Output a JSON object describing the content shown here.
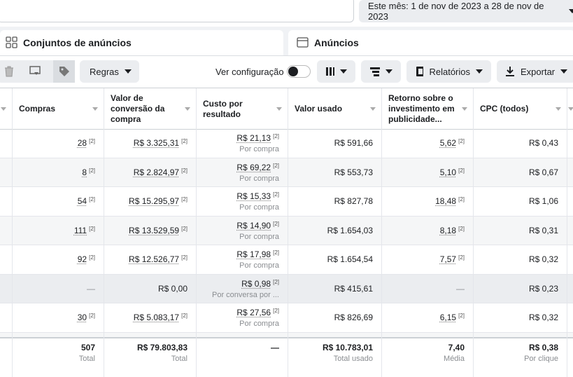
{
  "date_range": "Este mês: 1 de nov de 2023 a 28 de nov de 2023",
  "tabs": [
    "Conjuntos de anúncios",
    "Anúncios"
  ],
  "toolbar": {
    "rules": "Regras",
    "view_setting": "Ver configuração",
    "reports": "Relatórios",
    "export": "Exportar"
  },
  "table": {
    "columns": [
      "Compras",
      "Valor de conversão da compra",
      "Custo por resultado",
      "Valor usado",
      "Retorno sobre o investimento em publicidade...",
      "CPC (todos)"
    ],
    "rows": [
      [
        {
          "text": "28",
          "note": "[2]"
        },
        {
          "text": "R$ 3.325,31",
          "note": "[2]"
        },
        {
          "text": "R$ 21,13",
          "note": "[2]",
          "sub": "Por compra"
        },
        {
          "text": "R$ 591,66"
        },
        {
          "text": "5,62",
          "note": "[2]"
        },
        {
          "text": "R$ 0,43"
        }
      ],
      [
        {
          "text": "8",
          "note": "[2]"
        },
        {
          "text": "R$ 2.824,97",
          "note": "[2]"
        },
        {
          "text": "R$ 69,22",
          "note": "[2]",
          "sub": "Por compra"
        },
        {
          "text": "R$ 553,73"
        },
        {
          "text": "5,10",
          "note": "[2]"
        },
        {
          "text": "R$ 0,67"
        }
      ],
      [
        {
          "text": "54",
          "note": "[2]"
        },
        {
          "text": "R$ 15.295,97",
          "note": "[2]"
        },
        {
          "text": "R$ 15,33",
          "note": "[2]",
          "sub": "Por compra"
        },
        {
          "text": "R$ 827,78"
        },
        {
          "text": "18,48",
          "note": "[2]"
        },
        {
          "text": "R$ 1,06"
        }
      ],
      [
        {
          "text": "111",
          "note": "[2]"
        },
        {
          "text": "R$ 13.529,59",
          "note": "[2]"
        },
        {
          "text": "R$ 14,90",
          "note": "[2]",
          "sub": "Por compra"
        },
        {
          "text": "R$ 1.654,03"
        },
        {
          "text": "8,18",
          "note": "[2]"
        },
        {
          "text": "R$ 0,31"
        }
      ],
      [
        {
          "text": "92",
          "note": "[2]"
        },
        {
          "text": "R$ 12.526,77",
          "note": "[2]"
        },
        {
          "text": "R$ 17,98",
          "note": "[2]",
          "sub": "Por compra"
        },
        {
          "text": "R$ 1.654,54"
        },
        {
          "text": "7,57",
          "note": "[2]"
        },
        {
          "text": "R$ 0,32"
        }
      ],
      [
        {
          "text": "—"
        },
        {
          "text": "R$ 0,00"
        },
        {
          "text": "R$ 0,98",
          "note": "[2]",
          "sub": "Por conversa por ..."
        },
        {
          "text": "R$ 415,61"
        },
        {
          "text": "—"
        },
        {
          "text": "R$ 0,23"
        }
      ],
      [
        {
          "text": "30",
          "note": "[2]"
        },
        {
          "text": "R$ 5.083,17",
          "note": "[2]"
        },
        {
          "text": "R$ 27,56",
          "note": "[2]",
          "sub": "Por compra"
        },
        {
          "text": "R$ 826,69"
        },
        {
          "text": "6,15",
          "note": "[2]"
        },
        {
          "text": "R$ 0,32"
        }
      ]
    ],
    "summary": [
      {
        "text": "507",
        "sub": "Total"
      },
      {
        "text": "R$ 79.803,83",
        "sub": "Total"
      },
      {
        "text": "—"
      },
      {
        "text": "R$ 10.783,01",
        "sub": "Total usado"
      },
      {
        "text": "7,40",
        "sub": "Média"
      },
      {
        "text": "R$ 0,38",
        "sub": "Por clique"
      }
    ]
  }
}
